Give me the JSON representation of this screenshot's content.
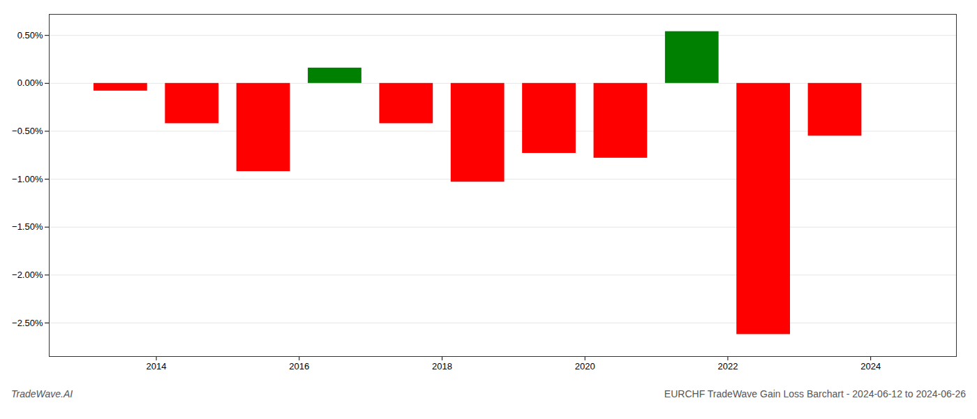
{
  "chart_data": {
    "type": "bar",
    "title": "EURCHF TradeWave Gain Loss Barchart - 2024-06-12 to 2024-06-26",
    "annotations": [
      "TradeWave.AI"
    ],
    "x": [
      2013.5,
      2014.5,
      2015.5,
      2016.5,
      2017.5,
      2018.5,
      2019.5,
      2020.5,
      2021.5,
      2022.5,
      2023.5
    ],
    "values": [
      -0.0008,
      -0.0042,
      -0.0092,
      0.0016,
      -0.0042,
      -0.0103,
      -0.0073,
      -0.0078,
      0.0054,
      -0.0262,
      -0.0055
    ],
    "colors": [
      "red",
      "red",
      "red",
      "green",
      "red",
      "red",
      "red",
      "red",
      "green",
      "red",
      "red"
    ],
    "xlim": [
      2012.5,
      2025.2
    ],
    "xticks": [
      2014,
      2016,
      2018,
      2020,
      2022,
      2024
    ],
    "ylim": [
      -0.0285,
      0.0072
    ],
    "yticks": [
      {
        "value": 0.005,
        "label": "0.50%"
      },
      {
        "value": 0.0,
        "label": "0.00%"
      },
      {
        "value": -0.005,
        "label": "−0.50%"
      },
      {
        "value": -0.01,
        "label": "−1.00%"
      },
      {
        "value": -0.015,
        "label": "−1.50%"
      },
      {
        "value": -0.02,
        "label": "−2.00%"
      },
      {
        "value": -0.025,
        "label": "−2.50%"
      }
    ],
    "grid": true
  }
}
